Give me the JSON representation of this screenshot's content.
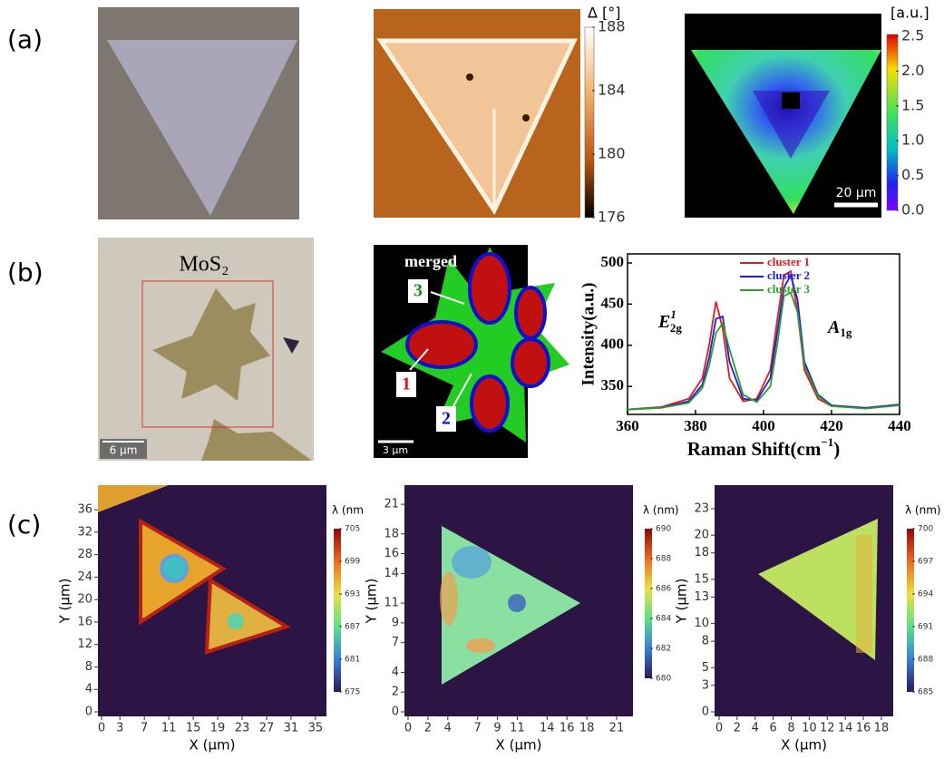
{
  "panel_labels": [
    "(a)",
    "(b)",
    "(c)"
  ],
  "panel_a": {
    "delta_colorbar": {
      "label": "Δ [°]",
      "ticks": [
        188,
        184,
        180,
        176
      ]
    },
    "intensity_colorbar": {
      "label": "[a.u.]",
      "ticks": [
        "2.5",
        "2.0",
        "1.5",
        "1.0",
        "0.5",
        "0.0"
      ]
    },
    "scale_bar": "20 µm"
  },
  "panel_b": {
    "material": "MoS₂",
    "optical_scale_bar": "6 µm",
    "map_title": "merged",
    "cluster_labels": [
      "1",
      "2",
      "3"
    ],
    "map_scale_bar": "3 µm"
  },
  "chart_data": {
    "type": "line",
    "x_label": {
      "text": "Raman Shift(cm",
      "sup": "−1",
      "tail": ")"
    },
    "y_label": "Intensity(a.u.)",
    "x": [
      360,
      370,
      378,
      382,
      384,
      386,
      388,
      390,
      394,
      398,
      402,
      404,
      406,
      408,
      410,
      412,
      416,
      420,
      430,
      440
    ],
    "series": [
      {
        "name": "cluster 1",
        "color": "#e41a1c",
        "values": [
          322,
          325,
          335,
          360,
          400,
          453,
          420,
          360,
          332,
          335,
          370,
          430,
          485,
          490,
          440,
          370,
          335,
          326,
          324,
          328
        ]
      },
      {
        "name": "cluster 2",
        "color": "#1f1fd6",
        "values": [
          322,
          324,
          332,
          352,
          385,
          432,
          435,
          380,
          335,
          333,
          360,
          415,
          470,
          485,
          455,
          380,
          340,
          327,
          324,
          328
        ]
      },
      {
        "name": "cluster 3",
        "color": "#2ca02c",
        "values": [
          322,
          324,
          330,
          348,
          375,
          415,
          427,
          395,
          340,
          331,
          350,
          400,
          460,
          464,
          440,
          375,
          338,
          326,
          323,
          327
        ]
      }
    ],
    "xlim": [
      360,
      440
    ],
    "ylim": [
      316,
      511
    ],
    "xticks": [
      360,
      380,
      400,
      420,
      440
    ],
    "yticks": [
      350,
      400,
      450,
      500
    ],
    "annotations": [
      {
        "text": "E",
        "sub": "2g",
        "sup": "1"
      },
      {
        "text": "A",
        "sub": "1g"
      }
    ],
    "legend": "upper right"
  },
  "panel_c": {
    "maps": [
      {
        "x_label": "X (μm)",
        "y_label": "Y (μm)",
        "xticks": [
          0,
          3,
          7,
          11,
          15,
          19,
          23,
          27,
          31,
          35
        ],
        "yticks": [
          0,
          4,
          8,
          12,
          16,
          20,
          24,
          28,
          32,
          36
        ],
        "colorbar_label": "λ (nm",
        "colorbar_ticks": [
          705,
          699,
          693,
          687,
          681,
          675
        ]
      },
      {
        "x_label": "X (μm)",
        "y_label": "Y (μm)",
        "xticks": [
          0,
          2,
          4,
          7,
          9,
          11,
          14,
          16,
          18,
          21
        ],
        "yticks": [
          0,
          2,
          4,
          7,
          9,
          11,
          14,
          16,
          18,
          21
        ],
        "colorbar_label": "λ (nm)",
        "colorbar_ticks": [
          690,
          688,
          686,
          684,
          682,
          680
        ]
      },
      {
        "x_label": "X (μm)",
        "y_label": "Y (μm)",
        "xticks": [
          0,
          2,
          4,
          6,
          8,
          10,
          12,
          14,
          16,
          18
        ],
        "yticks": [
          0,
          3,
          5,
          8,
          10,
          13,
          15,
          18,
          20,
          23
        ],
        "colorbar_label": "λ (nm)",
        "colorbar_ticks": [
          700,
          697,
          694,
          691,
          688,
          685
        ]
      }
    ]
  }
}
